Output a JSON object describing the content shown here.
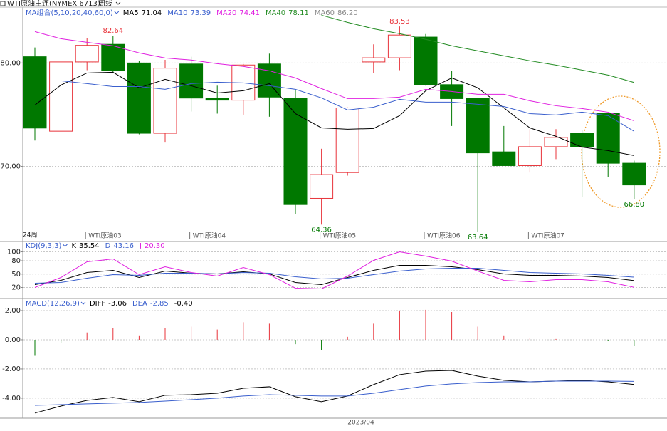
{
  "header": {
    "title": "WTI原油主连(NYMEX 6713)",
    "period": "周线"
  },
  "chart_data": [
    {
      "type": "candlestick",
      "legend_title": "MA组合(5,10,20,40,60,0)",
      "period_count": "24周",
      "categories": [
        null,
        null,
        "WTI原油03",
        null,
        null,
        null,
        "WTI原油04",
        null,
        null,
        null,
        null,
        "WTI原油05",
        null,
        null,
        null,
        "WTI原油06",
        null,
        null,
        null,
        "WTI原油07",
        null,
        null,
        null,
        null
      ],
      "up_color": "#e8333a",
      "down_color": "#007800",
      "ylim": [
        63.9,
        85.4
      ],
      "yticks": [
        {
          "value": 70,
          "label": "70.00"
        },
        {
          "value": 80,
          "label": "80.00"
        }
      ],
      "grid": true,
      "candles": [
        {
          "open": 80.6,
          "high": 81.5,
          "low": 72.5,
          "close": 73.7
        },
        {
          "open": 73.4,
          "high": 80.1,
          "low": 73.4,
          "close": 80.1
        },
        {
          "open": 80.1,
          "high": 82.4,
          "low": 79.3,
          "close": 81.7
        },
        {
          "open": 81.8,
          "high": 82.64,
          "low": 79.0,
          "close": 79.3,
          "annotate": "high"
        },
        {
          "open": 80.0,
          "high": 80.2,
          "low": 73.1,
          "close": 73.2
        },
        {
          "open": 73.2,
          "high": 80.3,
          "low": 72.3,
          "close": 79.5
        },
        {
          "open": 79.9,
          "high": 80.6,
          "low": 75.3,
          "close": 76.6
        },
        {
          "open": 76.6,
          "high": 77.8,
          "low": 75.1,
          "close": 76.4
        },
        {
          "open": 76.4,
          "high": 79.9,
          "low": 75.0,
          "close": 79.8
        },
        {
          "open": 79.9,
          "high": 80.9,
          "low": 74.8,
          "close": 76.7
        },
        {
          "open": 76.55,
          "high": 77.4,
          "low": 65.4,
          "close": 66.3
        },
        {
          "open": 66.9,
          "high": 71.7,
          "low": 64.36,
          "close": 69.2,
          "annotate": "low"
        },
        {
          "open": 69.4,
          "high": 75.7,
          "low": 69.1,
          "close": 75.65
        },
        {
          "open": 80.1,
          "high": 81.8,
          "low": 79.0,
          "close": 80.5
        },
        {
          "open": 80.5,
          "high": 83.53,
          "low": 79.3,
          "close": 82.7,
          "annotate": "high"
        },
        {
          "open": 82.5,
          "high": 82.8,
          "low": 77.8,
          "close": 77.9
        },
        {
          "open": 77.9,
          "high": 79.2,
          "low": 73.9,
          "close": 76.55
        },
        {
          "open": 76.6,
          "high": 76.6,
          "low": 63.64,
          "close": 71.3,
          "annotate": "low"
        },
        {
          "open": 71.4,
          "high": 73.9,
          "low": 70.07,
          "close": 70.07
        },
        {
          "open": 70.07,
          "high": 73.6,
          "low": 69.4,
          "close": 71.9
        },
        {
          "open": 71.9,
          "high": 73.6,
          "low": 70.7,
          "close": 72.8
        },
        {
          "open": 73.2,
          "high": 73.5,
          "low": 67.0,
          "close": 71.9
        },
        {
          "open": 75.1,
          "high": 75.2,
          "low": 69.0,
          "close": 70.3
        },
        {
          "open": 70.3,
          "high": 70.55,
          "low": 66.8,
          "close": 68.2,
          "annotate": "low",
          "low_label": "66.80"
        }
      ],
      "series": [
        {
          "name": "MA5",
          "color": "#000000",
          "value": 71.04,
          "values": [
            75.93,
            77.86,
            79.03,
            79.1,
            77.59,
            78.41,
            77.79,
            77.1,
            77.31,
            78.0,
            75.1,
            73.72,
            73.59,
            73.66,
            74.9,
            77.31,
            78.55,
            77.59,
            75.66,
            73.72,
            72.9,
            71.86,
            71.52,
            71.04
          ]
        },
        {
          "name": "MA10",
          "color": "#3a5fcd",
          "value": 73.39,
          "values": [
            null,
            78.28,
            78.0,
            77.72,
            77.72,
            77.45,
            78.0,
            78.14,
            78.07,
            77.79,
            77.45,
            76.62,
            75.45,
            75.72,
            76.48,
            76.21,
            76.21,
            76.0,
            75.79,
            75.1,
            74.97,
            75.24,
            74.9,
            73.39
          ]
        },
        {
          "name": "MA20",
          "color": "#e020e0",
          "value": 74.41,
          "values": [
            83.03,
            82.34,
            82.0,
            81.66,
            80.97,
            80.48,
            80.28,
            79.93,
            79.66,
            79.24,
            78.55,
            77.52,
            76.55,
            76.55,
            76.69,
            77.45,
            77.24,
            76.97,
            76.97,
            76.34,
            75.86,
            75.59,
            75.24,
            74.41
          ]
        },
        {
          "name": "MA40",
          "color": "#228b22",
          "value": 78.11,
          "values": [
            null,
            null,
            null,
            null,
            null,
            null,
            null,
            null,
            null,
            null,
            null,
            84.62,
            83.93,
            83.31,
            82.83,
            82.28,
            81.66,
            81.17,
            80.69,
            80.21,
            79.79,
            79.31,
            78.83,
            78.11
          ]
        },
        {
          "name": "MA60",
          "color": "#888888",
          "value": 86.2,
          "value_label": "86.20",
          "values": [
            null,
            null,
            null,
            null,
            null,
            null,
            null,
            null,
            null,
            null,
            null,
            null,
            null,
            null,
            null,
            null,
            null,
            null,
            null,
            null,
            null,
            null,
            null,
            null
          ]
        }
      ]
    },
    {
      "type": "line",
      "legend_title": "KDJ(9,3,3)",
      "ylim": [
        0,
        120
      ],
      "yticks": [
        20,
        50,
        80,
        100
      ],
      "grid": true,
      "series": [
        {
          "name": "K",
          "color": "#000000",
          "value": 35.54,
          "values": [
            26.4,
            36,
            53.6,
            58.4,
            42.4,
            56.8,
            52,
            50.4,
            55.2,
            50.4,
            31.2,
            26.4,
            42.4,
            58.4,
            69.6,
            69.6,
            66.4,
            60,
            50.4,
            47.2,
            47.2,
            45.6,
            42.4,
            35.54
          ]
        },
        {
          "name": "D",
          "color": "#3a5fcd",
          "value": 43.16,
          "values": [
            29.6,
            31.2,
            40.8,
            48.8,
            47.2,
            52,
            52,
            50.4,
            53.6,
            52,
            44,
            39.2,
            40.8,
            48.8,
            56.8,
            61.6,
            63.2,
            63.2,
            58.4,
            53.6,
            52,
            50.4,
            47.2,
            43.16
          ]
        },
        {
          "name": "J",
          "color": "#e020e0",
          "value": 20.3,
          "value_label": "20.30",
          "values": [
            20,
            42.4,
            77.6,
            84,
            48.8,
            66.4,
            53.6,
            45.6,
            64.8,
            48.8,
            18.4,
            16.8,
            45.6,
            80.8,
            100,
            90.4,
            79.2,
            56.8,
            36,
            32.8,
            37.6,
            37.6,
            32.8,
            20.3
          ]
        }
      ]
    },
    {
      "type": "macd",
      "legend_title": "MACD(12,26,9)",
      "x_label": "2023/04",
      "ylim": [
        -5.37,
        2.73
      ],
      "yticks": [
        {
          "value": 2,
          "label": "2.00"
        },
        {
          "value": 0,
          "label": "0.00"
        },
        {
          "value": -2,
          "label": "-2.00"
        },
        {
          "value": -4,
          "label": "-4.00"
        }
      ],
      "grid": true,
      "histogram": {
        "up_color": "#e8333a",
        "down_color": "#007800",
        "value": -0.4,
        "value_label": "-0.40",
        "values": [
          -1.1,
          -0.2,
          0.5,
          0.8,
          0.3,
          0.8,
          0.9,
          0.7,
          1.2,
          1.1,
          -0.3,
          -0.7,
          0.2,
          1.1,
          2.0,
          2.05,
          1.9,
          0.9,
          0.3,
          0.1,
          0.05,
          0.02,
          -0.05,
          -0.4
        ]
      },
      "series": [
        {
          "name": "DIFF",
          "color": "#000000",
          "value": -3.06,
          "values": [
            -5.02,
            -4.54,
            -4.15,
            -3.95,
            -4.24,
            -3.8,
            -3.76,
            -3.66,
            -3.32,
            -3.22,
            -3.9,
            -4.24,
            -3.85,
            -3.07,
            -2.39,
            -2.15,
            -2.1,
            -2.49,
            -2.78,
            -2.88,
            -2.83,
            -2.78,
            -2.88,
            -3.06
          ]
        },
        {
          "name": "DEA",
          "color": "#3a5fcd",
          "value": -2.85,
          "values": [
            -4.49,
            -4.44,
            -4.39,
            -4.34,
            -4.29,
            -4.2,
            -4.1,
            -4.0,
            -3.85,
            -3.76,
            -3.8,
            -3.85,
            -3.85,
            -3.66,
            -3.41,
            -3.17,
            -3.02,
            -2.93,
            -2.88,
            -2.88,
            -2.83,
            -2.83,
            -2.83,
            -2.85
          ]
        }
      ]
    }
  ]
}
